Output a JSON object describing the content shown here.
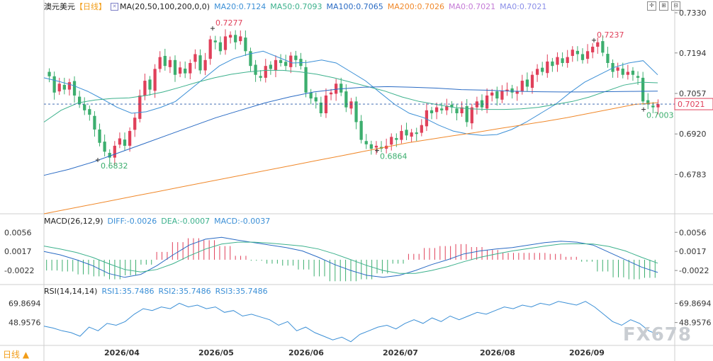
{
  "header": {
    "symbol": "澳元美元",
    "period_tag": "【日线】",
    "ma_label": "MA(20,50,100,200,0,0)",
    "ma_values": [
      {
        "label": "MA20:0.7124",
        "color": "#3b8fd6"
      },
      {
        "label": "MA50:0.7093",
        "color": "#3cb18c"
      },
      {
        "label": "MA100:0.7065",
        "color": "#2a6bc4"
      },
      {
        "label": "MA200:0.7026",
        "color": "#f0882a"
      },
      {
        "label": "MA0:0.7021",
        "color": "#c47bd6"
      },
      {
        "label": "MA0:0.7021",
        "color": "#8a8ee8"
      }
    ]
  },
  "macd_header": {
    "title": "MACD(26,12,9)",
    "diff": "DIFF:-0.0026",
    "dea": "DEA:-0.0007",
    "macd": "MACD:-0.0037"
  },
  "rsi_header": {
    "title": "RSI(14,14,14)",
    "rsi1": "RSI1:35.7486",
    "rsi2": "RSI2:35.7486",
    "rsi3": "RSI3:35.7486"
  },
  "period_button": "日线 ▲",
  "watermark": "FX678",
  "colors": {
    "up": "#e0405a",
    "down": "#3cae6e",
    "ma20": "#3b8fd6",
    "ma50": "#3cb18c",
    "ma100": "#2a6bc4",
    "ma200": "#f0882a",
    "current": "#e0405a"
  },
  "chart_data": [
    {
      "type": "candlestick",
      "title": "澳元美元 【日线】",
      "x_ticks": [
        "2026/04",
        "2026/05",
        "2026/06",
        "2026/07",
        "2026/08",
        "2026/09"
      ],
      "y_ticks": [
        0.733,
        0.7194,
        0.7057,
        0.692,
        0.6783
      ],
      "ylim": [
        0.665,
        0.733
      ],
      "current_price": 0.7021,
      "annotations": [
        {
          "label": "0.6832",
          "value": 0.6832,
          "kind": "low"
        },
        {
          "label": "0.7277",
          "value": 0.7277,
          "kind": "high"
        },
        {
          "label": "0.6864",
          "value": 0.6864,
          "kind": "low"
        },
        {
          "label": "0.7237",
          "value": 0.7237,
          "kind": "high"
        },
        {
          "label": "0.7003",
          "value": 0.7003,
          "kind": "low"
        }
      ],
      "close": [
        0.7115,
        0.706,
        0.709,
        0.707,
        0.7095,
        0.705,
        0.702,
        0.7,
        0.6985,
        0.6935,
        0.689,
        0.686,
        0.684,
        0.688,
        0.6905,
        0.688,
        0.693,
        0.6975,
        0.705,
        0.71,
        0.707,
        0.714,
        0.718,
        0.715,
        0.717,
        0.712,
        0.7145,
        0.7125,
        0.716,
        0.719,
        0.7135,
        0.717,
        0.724,
        0.723,
        0.72,
        0.725,
        0.7255,
        0.723,
        0.725,
        0.72,
        0.715,
        0.712,
        0.711,
        0.715,
        0.714,
        0.717,
        0.716,
        0.715,
        0.7185,
        0.717,
        0.715,
        0.706,
        0.704,
        0.703,
        0.699,
        0.705,
        0.706,
        0.709,
        0.706,
        0.701,
        0.703,
        0.696,
        0.69,
        0.6885,
        0.687,
        0.688,
        0.687,
        0.688,
        0.691,
        0.69,
        0.693,
        0.6915,
        0.6925,
        0.692,
        0.695,
        0.7,
        0.699,
        0.701,
        0.7,
        0.7015,
        0.701,
        0.699,
        0.701,
        0.696,
        0.701,
        0.703,
        0.701,
        0.705,
        0.706,
        0.704,
        0.7065,
        0.707,
        0.706,
        0.7065,
        0.71,
        0.708,
        0.712,
        0.714,
        0.713,
        0.7165,
        0.715,
        0.718,
        0.716,
        0.718,
        0.7205,
        0.719,
        0.717,
        0.72,
        0.7215,
        0.723,
        0.7195,
        0.716,
        0.713,
        0.7145,
        0.712,
        0.713,
        0.712,
        0.711,
        0.703,
        0.702,
        0.701,
        0.7021
      ],
      "ma": [
        {
          "name": "MA20",
          "color": "#3b8fd6",
          "values": [
            0.711,
            0.7098,
            0.7084,
            0.7064,
            0.7038,
            0.701,
            0.699,
            0.6995,
            0.701,
            0.703,
            0.707,
            0.711,
            0.715,
            0.7175,
            0.719,
            0.72,
            0.718,
            0.716,
            0.7162,
            0.717,
            0.716,
            0.713,
            0.71,
            0.706,
            0.702,
            0.699,
            0.6975,
            0.695,
            0.693,
            0.692,
            0.6915,
            0.6918,
            0.6935,
            0.696,
            0.699,
            0.702,
            0.706,
            0.7095,
            0.712,
            0.7145,
            0.716,
            0.7168,
            0.712
          ]
        },
        {
          "name": "MA50",
          "color": "#3cb18c",
          "values": [
            0.696,
            0.7,
            0.7025,
            0.7035,
            0.704,
            0.7042,
            0.705,
            0.7062,
            0.7078,
            0.7095,
            0.711,
            0.7122,
            0.713,
            0.7135,
            0.7135,
            0.713,
            0.7122,
            0.711,
            0.7095,
            0.708,
            0.7065,
            0.7045,
            0.703,
            0.702,
            0.701,
            0.7005,
            0.7003,
            0.7003,
            0.7005,
            0.701,
            0.702,
            0.703,
            0.7045,
            0.7065,
            0.7085,
            0.7095,
            0.7093
          ]
        },
        {
          "name": "MA100",
          "color": "#2a6bc4",
          "values": [
            0.678,
            0.68,
            0.6825,
            0.6855,
            0.6885,
            0.6915,
            0.6945,
            0.6975,
            0.7,
            0.7025,
            0.7045,
            0.7062,
            0.7072,
            0.7078,
            0.708,
            0.7078,
            0.7075,
            0.707,
            0.7068,
            0.7065,
            0.7063,
            0.7062,
            0.7062,
            0.7063,
            0.7064,
            0.7065
          ]
        },
        {
          "name": "MA200",
          "color": "#f0882a",
          "values": [
            0.665,
            0.6665,
            0.668,
            0.6695,
            0.671,
            0.6725,
            0.674,
            0.6755,
            0.677,
            0.6785,
            0.68,
            0.6815,
            0.683,
            0.6845,
            0.686,
            0.6875,
            0.689,
            0.6902,
            0.6914,
            0.6925,
            0.6938,
            0.695,
            0.6962,
            0.6975,
            0.699,
            0.7005,
            0.702,
            0.7026
          ]
        }
      ]
    },
    {
      "type": "macd",
      "title": "MACD(26,12,9)",
      "y_ticks": [
        0.0056,
        0.0017,
        -0.0022
      ],
      "ylim": [
        -0.0045,
        0.0068
      ],
      "series": [
        {
          "name": "DIFF",
          "color": "#2a6bc4",
          "values": [
            0.0017,
            0.001,
            0.0,
            -0.0012,
            -0.0028,
            -0.0036,
            -0.003,
            -0.0012,
            0.001,
            0.003,
            0.0042,
            0.0046,
            0.004,
            0.0035,
            0.003,
            0.0025,
            0.0018,
            0.0005,
            -0.001,
            -0.0022,
            -0.0032,
            -0.0036,
            -0.0032,
            -0.0022,
            -0.001,
            0.0,
            0.0012,
            0.0018,
            0.0022,
            0.0025,
            0.003,
            0.0035,
            0.0038,
            0.0036,
            0.003,
            0.0015,
            0.0,
            -0.0015,
            -0.0026
          ]
        },
        {
          "name": "DEA",
          "color": "#3cb18c",
          "values": [
            0.0028,
            0.0022,
            0.0015,
            0.0005,
            -0.0008,
            -0.002,
            -0.0025,
            -0.002,
            -0.0008,
            0.0008,
            0.0022,
            0.0032,
            0.0036,
            0.0036,
            0.0034,
            0.0031,
            0.0028,
            0.0022,
            0.0012,
            0.0,
            -0.0012,
            -0.0022,
            -0.0028,
            -0.0028,
            -0.0022,
            -0.0014,
            -0.0004,
            0.0005,
            0.0012,
            0.0018,
            0.0023,
            0.0028,
            0.0032,
            0.0033,
            0.0032,
            0.0027,
            0.0018,
            0.0005,
            -0.0007
          ]
        },
        {
          "name": "MACD",
          "color": "#e0405a",
          "values": [
            -0.0022,
            -0.0024,
            -0.003,
            -0.0034,
            -0.004,
            -0.0032,
            -0.001,
            0.0016,
            0.0036,
            0.0044,
            0.004,
            0.0028,
            0.0008,
            -0.0002,
            -0.0008,
            -0.0012,
            -0.002,
            -0.0034,
            -0.0044,
            -0.0044,
            -0.004,
            -0.0028,
            -0.0008,
            0.0012,
            0.0024,
            0.0028,
            0.0032,
            0.0026,
            0.002,
            0.0014,
            0.0014,
            0.0014,
            0.0012,
            0.0006,
            -0.0004,
            -0.0024,
            -0.0036,
            -0.004,
            -0.0037
          ]
        }
      ]
    },
    {
      "type": "line",
      "title": "RSI(14,14,14)",
      "y_ticks": [
        69.8694,
        48.9576
      ],
      "ylim": [
        24,
        78
      ],
      "series": [
        {
          "name": "RSI1",
          "color": "#3b8fd6",
          "values": [
            45,
            43,
            40,
            38,
            34,
            44,
            40,
            48,
            46,
            50,
            58,
            64,
            62,
            66,
            64,
            70,
            66,
            68,
            64,
            66,
            60,
            62,
            56,
            58,
            55,
            52,
            46,
            50,
            40,
            44,
            38,
            34,
            30,
            33,
            28,
            36,
            40,
            44,
            46,
            42,
            48,
            52,
            48,
            54,
            50,
            56,
            52,
            56,
            60,
            58,
            62,
            66,
            64,
            68,
            66,
            70,
            68,
            72,
            70,
            68,
            72,
            66,
            58,
            50,
            46,
            52,
            48,
            40,
            36
          ]
        },
        {
          "name": "RSI2",
          "color": "#3b8fd6",
          "values": []
        },
        {
          "name": "RSI3",
          "color": "#3b8fd6",
          "values": []
        }
      ]
    }
  ]
}
